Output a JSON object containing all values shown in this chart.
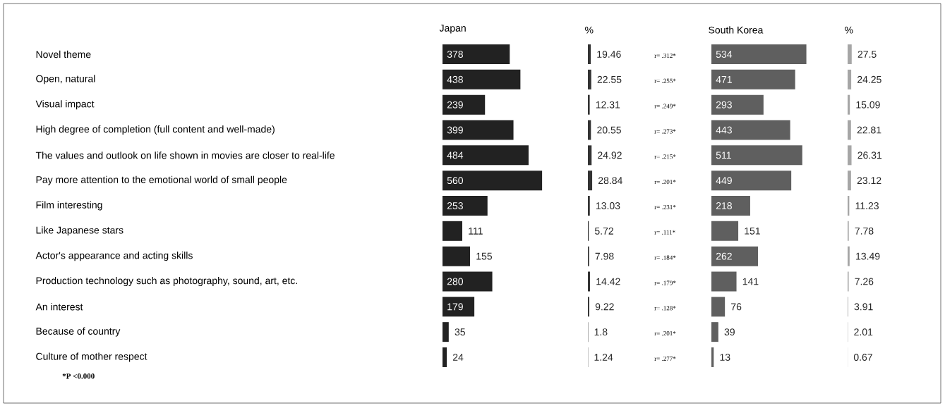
{
  "chart_data": [
    {
      "type": "bar",
      "orientation": "horizontal",
      "title": "Japan",
      "categories": [
        "Novel theme",
        "Open, natural",
        "Visual impact",
        "High degree of completion (full content and well-made)",
        "The values and outlook on life shown in movies are closer to real-life",
        "Pay more attention to the emotional world of small people",
        "Film interesting",
        "Like Japanese stars",
        "Actor's appearance and acting skills",
        "Production technology such as photography, sound, art, etc.",
        "An interest",
        "Because of country",
        "Culture of mother respect"
      ],
      "values": [
        378,
        438,
        239,
        399,
        484,
        560,
        253,
        111,
        155,
        280,
        179,
        35,
        24
      ],
      "color": "#222222",
      "data_labels": true,
      "annotations": [
        "*P <0.000"
      ]
    },
    {
      "type": "bar",
      "orientation": "horizontal",
      "title": "%",
      "categories": [
        null,
        null,
        null,
        null,
        null,
        null,
        null,
        null,
        null,
        null,
        null,
        null,
        null
      ],
      "values": [
        19.46,
        22.55,
        12.31,
        20.55,
        24.92,
        28.84,
        13.03,
        5.72,
        7.98,
        14.42,
        9.22,
        1.8,
        1.24
      ],
      "color": "#333333",
      "data_labels": true
    },
    {
      "type": "other",
      "annotations": [
        "r= .312*",
        "r= .255*",
        "r= .249*",
        "r= .273*",
        "r= .215*",
        "r= .201*",
        "r= .231*",
        "r= .111*",
        "r= .184*",
        "r= .179*",
        "r= .128*",
        "r= .201*",
        "r= .277*"
      ]
    },
    {
      "type": "bar",
      "orientation": "horizontal",
      "title": "South Korea",
      "categories": [
        null,
        null,
        null,
        null,
        null,
        null,
        null,
        null,
        null,
        null,
        null,
        null,
        null
      ],
      "values": [
        534,
        471,
        293,
        443,
        511,
        449,
        218,
        151,
        262,
        141,
        76,
        39,
        13
      ],
      "color": "#5f5f5f",
      "data_labels": true
    },
    {
      "type": "bar",
      "orientation": "horizontal",
      "title": "%",
      "categories": [
        null,
        null,
        null,
        null,
        null,
        null,
        null,
        null,
        null,
        null,
        null,
        null,
        null
      ],
      "values": [
        27.5,
        24.25,
        15.09,
        22.81,
        26.31,
        23.12,
        11.23,
        7.78,
        13.49,
        7.26,
        3.91,
        2.01,
        0.67
      ],
      "color": "#a6a6a6",
      "data_labels": true
    }
  ]
}
